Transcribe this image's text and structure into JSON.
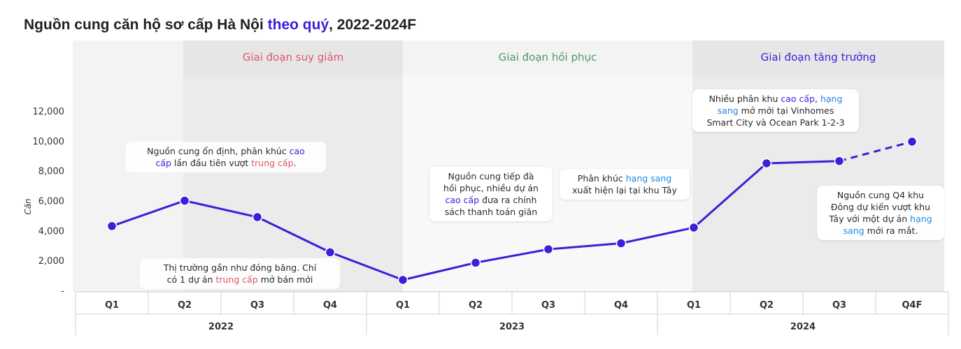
{
  "title": {
    "part1": "Nguồn cung căn hộ sơ cấp Hà Nội ",
    "part2": "theo quý",
    "part3": ", 2022-2024F"
  },
  "colors": {
    "line": "#3b1fd9",
    "phase_decline": "#e0566a",
    "phase_recovery": "#4a9a6a",
    "phase_growth": "#3b1fd9",
    "highlight_blue": "#1e88e5",
    "band_dark": "#e6e6e6",
    "band_light": "#f3f3f3"
  },
  "phases": [
    {
      "label": "Giai đoạn suy giảm",
      "color": "#e0566a"
    },
    {
      "label": "Giai đoạn hồi phục",
      "color": "#4a9a6a"
    },
    {
      "label": "Giai đoạn tăng trưởng",
      "color": "#3b1fd9"
    }
  ],
  "chart_data": {
    "type": "line",
    "categories": [
      "Q1",
      "Q2",
      "Q3",
      "Q4",
      "Q1",
      "Q2",
      "Q3",
      "Q4",
      "Q1",
      "Q2",
      "Q3",
      "Q4F"
    ],
    "years": [
      "2022",
      "2023",
      "2024"
    ],
    "values": [
      4300,
      6000,
      4900,
      2550,
      700,
      1850,
      2750,
      3150,
      4200,
      8500,
      8650,
      9950
    ],
    "forecast_from_index": 10,
    "ylabel": "Căn",
    "ylim": [
      0,
      12000
    ],
    "yticks": [
      "-",
      "2,000",
      "4,000",
      "6,000",
      "8,000",
      "10,000",
      "12,000"
    ],
    "grid": false
  },
  "annotations": {
    "a1": {
      "t1": "Nguồn cung ổn định, phân khúc ",
      "t2": "cao",
      "t3": "cấp",
      "t4": " lần đầu tiên vượt ",
      "t5": "trung cấp",
      "t6": "."
    },
    "a2": {
      "t1": "Thị trường gần như đóng băng. Chỉ",
      "t2": "có 1 dự án ",
      "t3": "trung cấp",
      "t4": " mở bán mới"
    },
    "a3": {
      "t1": "Nguồn cung tiếp đà",
      "t2": "hồi phục, nhiều dự án",
      "t3": "cao cấp",
      "t4": " đưa ra chính",
      "t5": "sách thanh toán giãn"
    },
    "a4": {
      "t1": "Phân khúc ",
      "t2": "hạng sang",
      "t3": "xuất hiện lại tại khu Tây"
    },
    "a5": {
      "t1": "Nhiều phân khu ",
      "t2": "cao cấp",
      "t3": ", ",
      "t4": "hạng",
      "t5": "sang",
      "t6": " mở mới tại Vinhomes",
      "t7": "Smart City và Ocean Park 1-2-3"
    },
    "a6": {
      "t1": "Nguồn cung Q4 khu",
      "t2": "Đông dự kiến vượt khu",
      "t3": "Tây với một dự án ",
      "t4": "hạng",
      "t5": "sang",
      "t6": " mới ra mắt."
    }
  }
}
